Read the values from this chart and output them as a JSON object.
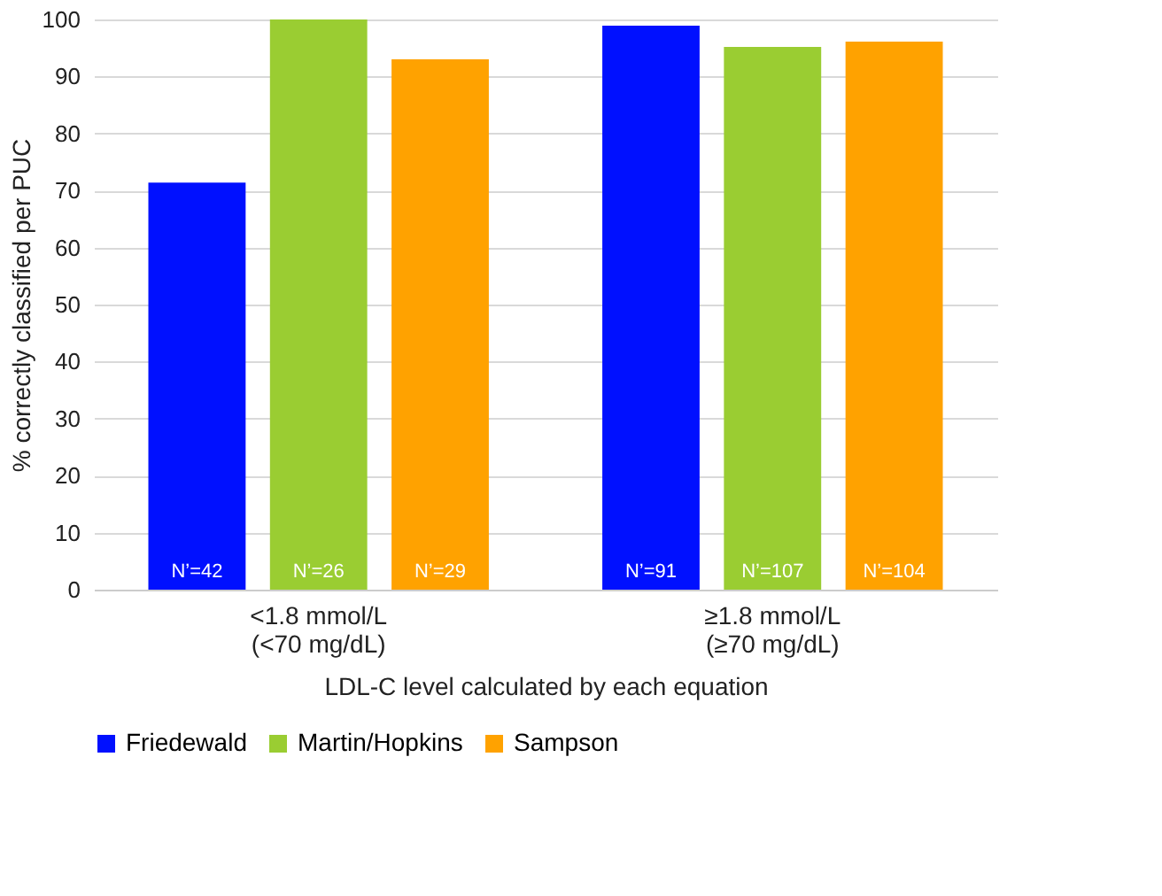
{
  "chart_data": {
    "type": "bar",
    "xlabel": "LDL-C level calculated by each equation",
    "ylabel": "% correctly classified per PUC",
    "categories": [
      "<1.8 mmol/L\n(<70 mg/dL)",
      "≥1.8 mmol/L\n(≥70 mg/dL)"
    ],
    "series": [
      {
        "name": "Friedewald",
        "color": "#0010ff",
        "values": [
          71.4,
          98.9
        ]
      },
      {
        "name": "Martin/Hopkins",
        "color": "#9acd32",
        "values": [
          100,
          95.2
        ]
      },
      {
        "name": "Sampson",
        "color": "#ffa200",
        "values": [
          93.0,
          96.1
        ]
      }
    ],
    "annotations": [
      "N’=42",
      "N’=26",
      "N’=29",
      "N’=91",
      "N’=107",
      "N’=104"
    ],
    "ylim": [
      0,
      100
    ],
    "yticks": [
      0,
      10,
      20,
      30,
      40,
      50,
      60,
      70,
      80,
      90,
      100
    ],
    "grid": "y",
    "legend": "bottom"
  }
}
